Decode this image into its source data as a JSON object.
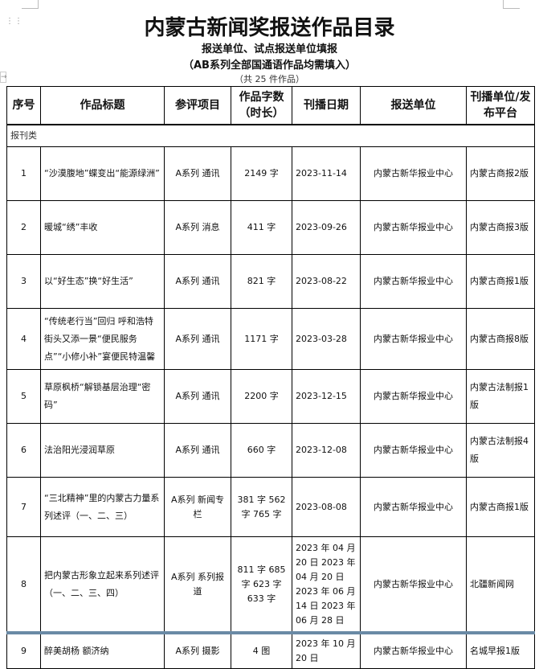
{
  "document": {
    "title": "内蒙古新闻奖报送作品目录",
    "subtitle1": "报送单位、试点报送单位填报",
    "subtitle2": "（AB系列全部国通语作品均需填入）",
    "count_note": "（共 25 件作品）"
  },
  "table": {
    "headers": [
      "序号",
      "作品标题",
      "参评项目",
      "作品字数（时长）",
      "刊播日期",
      "报送单位",
      "刊播单位/发布平台"
    ],
    "category": "报刊类",
    "rows": [
      {
        "no": "1",
        "title": "“沙漠腹地”蝶变出“能源绿洲”",
        "item": "A系列 通讯",
        "words": "2149 字",
        "date": "2023-11-14",
        "unit": "内蒙古新华报业中心",
        "platform": "内蒙古商报2版"
      },
      {
        "no": "2",
        "title": "暖城“绣”丰收",
        "item": "A系列 消息",
        "words": "411 字",
        "date": "2023-09-26",
        "unit": "内蒙古新华报业中心",
        "platform": "内蒙古商报3版"
      },
      {
        "no": "3",
        "title": "以“好生态”换“好生活”",
        "item": "A系列 通讯",
        "words": "821 字",
        "date": "2023-08-22",
        "unit": "内蒙古新华报业中心",
        "platform": "内蒙古商报1版"
      },
      {
        "no": "4",
        "title": "“传统老行当”回归 呼和浩特街头又添一景“便民服务点”“小修小补”宴便民特温馨",
        "item": "A系列 通讯",
        "words": "1171 字",
        "date": "2023-03-28",
        "unit": "内蒙古新华报业中心",
        "platform": "内蒙古商报8版"
      },
      {
        "no": "5",
        "title": "草原枫桥“解锁基层治理“密码”",
        "item": "A系列 通讯",
        "words": "2200 字",
        "date": "2023-12-15",
        "unit": "内蒙古新华报业中心",
        "platform": "内蒙古法制报1版"
      },
      {
        "no": "6",
        "title": "法治阳光浸润草原",
        "item": "A系列 通讯",
        "words": "660 字",
        "date": "2023-12-08",
        "unit": "内蒙古新华报业中心",
        "platform": "内蒙古法制报4版"
      },
      {
        "no": "7",
        "title": "“三北精神”里的内蒙古力量系列述评（一、二、三）",
        "item": "A系列 新闻专栏",
        "words": "381 字 562 字 765 字",
        "date": "2023-08-08",
        "unit": "内蒙古新华报业中心",
        "platform": "内蒙古商报1版"
      },
      {
        "no": "8",
        "title": "把内蒙古形象立起来系列述评（一、二、三、四）",
        "item": "A系列 系列报道",
        "words": "811 字 685 字 623 字 633 字",
        "date": "2023 年 04 月 20 日 2023 年 04 月 20 日 2023 年 06 月 14 日 2023 年 06 月 28 日",
        "unit": "内蒙古新华报业中心",
        "platform": "北疆新闻网"
      },
      {
        "no": "9",
        "title": "醉美胡杨 额济纳",
        "item": "A系列 摄影",
        "words": "4 图",
        "date": "2023 年 10 月 20 日",
        "unit": "内蒙古新华报业中心",
        "platform": "名城早报1版"
      }
    ]
  }
}
